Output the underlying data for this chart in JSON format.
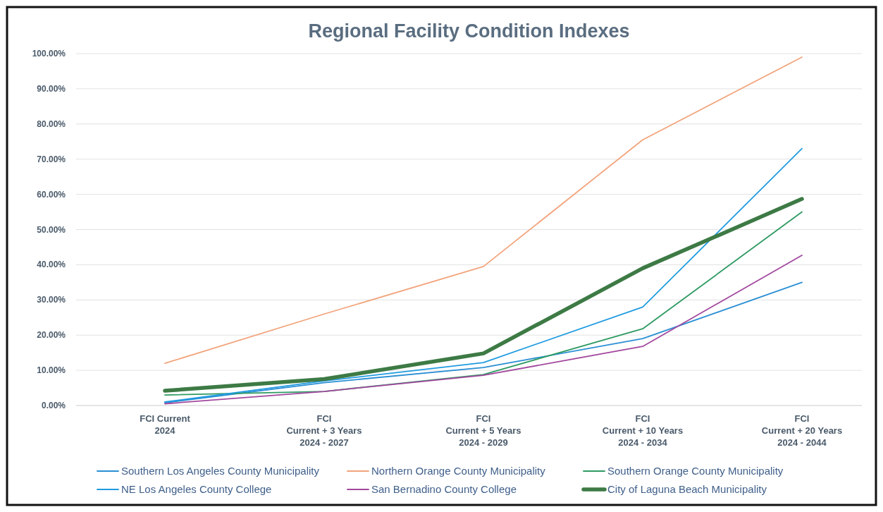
{
  "chart_data": {
    "type": "line",
    "title": "Regional Facility Condition Indexes",
    "categories": [
      "FCI Current\n2024",
      "FCI\nCurrent + 3 Years\n2024 - 2027",
      "FCI\nCurrent + 5 Years\n2024 - 2029",
      "FCI\nCurrent + 10 Years\n2024 - 2034",
      "FCI\nCurrent + 20 Years\n2024 - 2044"
    ],
    "series": [
      {
        "name": "Southern Los Angeles County Municipality",
        "color": "#2a8fd4",
        "values": [
          0.8,
          6.5,
          10.8,
          19,
          35
        ]
      },
      {
        "name": "Northern Orange County Municipality",
        "color": "#f2a47c",
        "values": [
          12,
          26,
          39.5,
          75.5,
          99
        ]
      },
      {
        "name": "Southern Orange County Municipality",
        "color": "#2e9a62",
        "values": [
          3,
          4,
          8.8,
          21.8,
          55
        ]
      },
      {
        "name": "NE Los Angeles County College",
        "color": "#1f9be0",
        "values": [
          1,
          7,
          12.2,
          28,
          73
        ]
      },
      {
        "name": "San Bernadino County College",
        "color": "#a2489e",
        "values": [
          0.5,
          4,
          8.6,
          16.8,
          42.7
        ]
      },
      {
        "name": "City of Laguna Beach Municipality",
        "color": "#3d7a45",
        "values": [
          4.2,
          7.5,
          14.8,
          39,
          58.7
        ]
      }
    ],
    "ylim": [
      0,
      100
    ],
    "yticks": [
      {
        "value": 0,
        "label": "0.00%"
      },
      {
        "value": 10,
        "label": "10.00%"
      },
      {
        "value": 20,
        "label": "20.00%"
      },
      {
        "value": 30,
        "label": "30.00%"
      },
      {
        "value": 40,
        "label": "40.00%"
      },
      {
        "value": 50,
        "label": "50.00%"
      },
      {
        "value": 60,
        "label": "60.00%"
      },
      {
        "value": 70,
        "label": "70.00%"
      },
      {
        "value": 80,
        "label": "80.00%"
      },
      {
        "value": 90,
        "label": "90.00%"
      },
      {
        "value": 100,
        "label": "100.00%"
      }
    ],
    "grid": "y",
    "legend": "bottom",
    "marker": "none",
    "line_style": "solid"
  }
}
